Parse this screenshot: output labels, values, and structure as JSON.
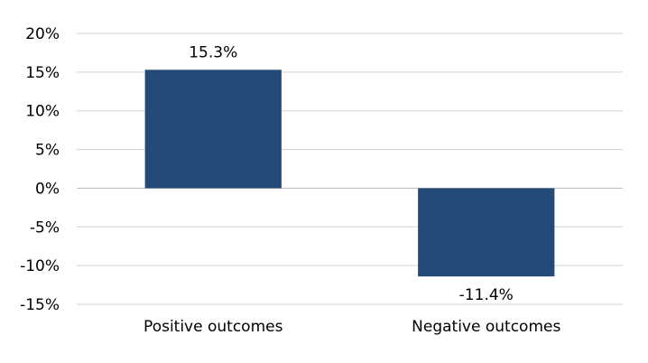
{
  "chart_data": {
    "type": "bar",
    "categories": [
      "Positive outcomes",
      "Negative outcomes"
    ],
    "values": [
      15.3,
      -11.4
    ],
    "data_labels": [
      "15.3%",
      "-11.4%"
    ],
    "title": "",
    "xlabel": "",
    "ylabel": "",
    "ylim": [
      -15,
      20
    ],
    "yticks": [
      20,
      15,
      10,
      5,
      0,
      -5,
      -10,
      -15
    ],
    "ytick_labels": [
      "20%",
      "15%",
      "10%",
      "5%",
      "0%",
      "-5%",
      "-10%",
      "-15%"
    ],
    "grid": true,
    "legend": "none",
    "bar_color": "#244a77"
  }
}
